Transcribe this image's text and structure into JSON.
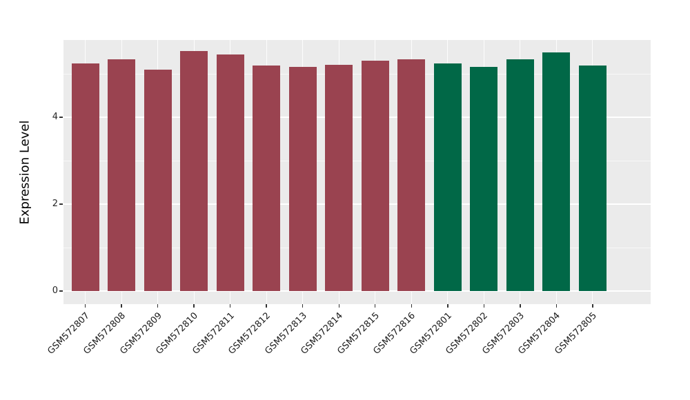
{
  "figure": {
    "background": "#FFFFFF"
  },
  "chart_data": {
    "type": "bar",
    "title": "",
    "xlabel": "",
    "ylabel": "Expression Level",
    "categories": [
      "GSM572807",
      "GSM572808",
      "GSM572809",
      "GSM572810",
      "GSM572811",
      "GSM572812",
      "GSM572813",
      "GSM572814",
      "GSM572815",
      "GSM572816",
      "GSM572801",
      "GSM572802",
      "GSM572803",
      "GSM572804",
      "GSM572805"
    ],
    "values": [
      5.24,
      5.33,
      5.1,
      5.52,
      5.44,
      5.19,
      5.16,
      5.21,
      5.3,
      5.33,
      5.24,
      5.16,
      5.33,
      5.49,
      5.19
    ],
    "bar_colors": [
      "#9A4350",
      "#9A4350",
      "#9A4350",
      "#9A4350",
      "#9A4350",
      "#9A4350",
      "#9A4350",
      "#9A4350",
      "#9A4350",
      "#9A4350",
      "#016847",
      "#016847",
      "#016847",
      "#016847",
      "#016847"
    ],
    "group_colors": {
      "maroon": "#9A4350",
      "green": "#016847"
    },
    "yticks": [
      0,
      2,
      4
    ],
    "minor_yticks": [
      1,
      3,
      5
    ],
    "ylim": [
      -0.3,
      5.78
    ],
    "grid": true,
    "legend": false,
    "panel_background": "#EBEBEB",
    "grid_color": "#FFFFFF",
    "axis_text_color": "#262626"
  }
}
